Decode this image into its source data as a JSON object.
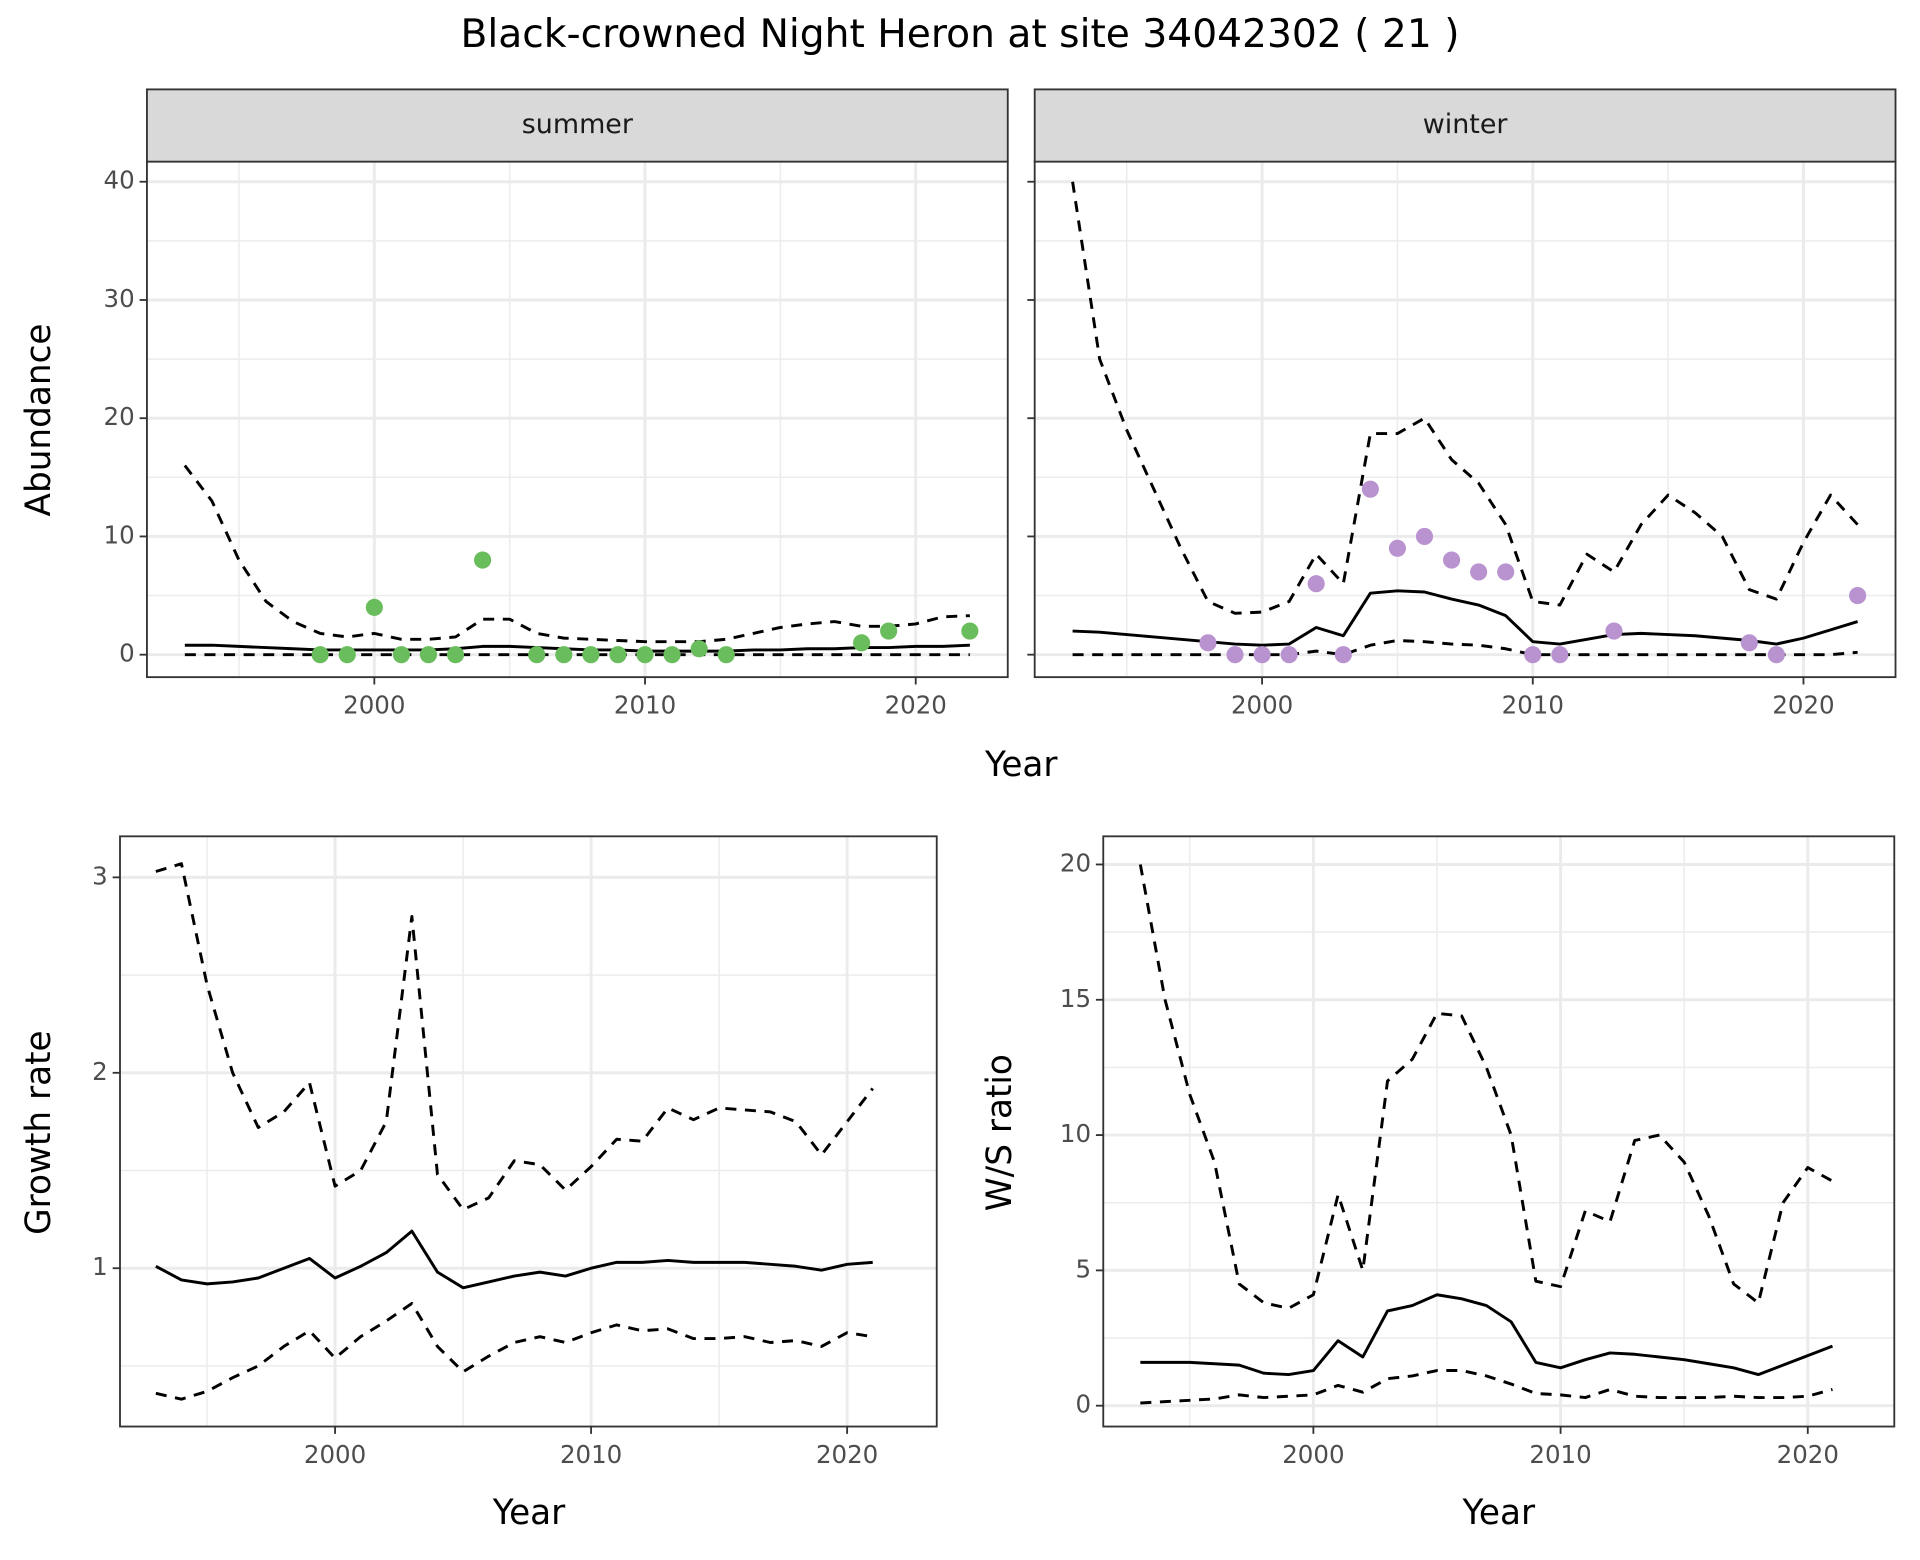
{
  "title": "Black-crowned Night Heron at site 34042302 ( 21 )",
  "chart_data": [
    {
      "type": "line",
      "strip": "summer",
      "xlabel": "Year",
      "ylabel": "Abundance",
      "xlim": [
        1991.6,
        2023.4
      ],
      "xticks": [
        2000,
        2010,
        2020
      ],
      "minor_xticks": [
        1995,
        2005,
        2015
      ],
      "ylim": [
        -1.9,
        41.7
      ],
      "yticks": [
        0,
        10,
        20,
        30,
        40
      ],
      "minor_yticks": [
        5,
        15,
        25,
        35
      ],
      "grid": true,
      "x": [
        1993,
        1994,
        1995,
        1996,
        1997,
        1998,
        1999,
        2000,
        2001,
        2002,
        2003,
        2004,
        2005,
        2006,
        2007,
        2008,
        2009,
        2010,
        2011,
        2012,
        2013,
        2014,
        2015,
        2016,
        2017,
        2018,
        2019,
        2020,
        2021,
        2022
      ],
      "series": [
        {
          "color": "#000000",
          "linestyle": "dashed",
          "values": [
            16,
            13,
            8,
            4.5,
            2.8,
            1.8,
            1.5,
            1.8,
            1.3,
            1.3,
            1.5,
            3,
            3,
            1.8,
            1.4,
            1.3,
            1.2,
            1.1,
            1.1,
            1.1,
            1.3,
            1.8,
            2.3,
            2.6,
            2.8,
            2.4,
            2.4,
            2.6,
            3.2,
            3.3
          ]
        },
        {
          "color": "#000000",
          "linestyle": "solid",
          "values": [
            0.8,
            0.8,
            0.7,
            0.6,
            0.5,
            0.4,
            0.4,
            0.4,
            0.4,
            0.4,
            0.5,
            0.7,
            0.7,
            0.6,
            0.5,
            0.4,
            0.4,
            0.3,
            0.3,
            0.3,
            0.3,
            0.4,
            0.4,
            0.5,
            0.5,
            0.6,
            0.6,
            0.7,
            0.7,
            0.8
          ]
        },
        {
          "color": "#000000",
          "linestyle": "dashed",
          "values": [
            0,
            0,
            0,
            0,
            0,
            0,
            0,
            0,
            0,
            0,
            0,
            0,
            0,
            0,
            0,
            0,
            0,
            0,
            0,
            0,
            0,
            0,
            0,
            0,
            0,
            0,
            0,
            0,
            0,
            0
          ]
        }
      ],
      "points": {
        "color": "#6abd5c",
        "x": [
          1998,
          1999,
          2000,
          2001,
          2002,
          2003,
          2004,
          2006,
          2007,
          2008,
          2009,
          2010,
          2011,
          2012,
          2013,
          2018,
          2019,
          2022
        ],
        "y": [
          0,
          0,
          4,
          0,
          0,
          0,
          8,
          0,
          0,
          0,
          0,
          0,
          0,
          0.5,
          0,
          1,
          2,
          2
        ]
      }
    },
    {
      "type": "line",
      "strip": "winter",
      "xlim": [
        1991.6,
        2023.4
      ],
      "xticks": [
        2000,
        2010,
        2020
      ],
      "minor_xticks": [
        1995,
        2005,
        2015
      ],
      "ylim": [
        -1.9,
        41.7
      ],
      "yticks": [
        0,
        10,
        20,
        30,
        40
      ],
      "minor_yticks": [
        5,
        15,
        25,
        35
      ],
      "grid": true,
      "ytick_labels": false,
      "x": [
        1993,
        1994,
        1995,
        1996,
        1997,
        1998,
        1999,
        2000,
        2001,
        2002,
        2003,
        2004,
        2005,
        2006,
        2007,
        2008,
        2009,
        2010,
        2011,
        2012,
        2013,
        2014,
        2015,
        2016,
        2017,
        2018,
        2019,
        2020,
        2021,
        2022
      ],
      "series": [
        {
          "color": "#000000",
          "linestyle": "dashed",
          "values": [
            40,
            25,
            19,
            14,
            9,
            4.5,
            3.5,
            3.6,
            4.5,
            8.5,
            6,
            18.7,
            18.7,
            20,
            16.5,
            14.5,
            11,
            4.5,
            4.2,
            8.5,
            7,
            11,
            13.5,
            12,
            10,
            5.5,
            4.7,
            9.5,
            13.5,
            11
          ]
        },
        {
          "color": "#000000",
          "linestyle": "solid",
          "values": [
            2,
            1.9,
            1.7,
            1.5,
            1.3,
            1.1,
            0.9,
            0.8,
            0.9,
            2.3,
            1.6,
            5.2,
            5.4,
            5.3,
            4.7,
            4.2,
            3.3,
            1.1,
            0.9,
            1.3,
            1.7,
            1.8,
            1.7,
            1.6,
            1.4,
            1.2,
            0.9,
            1.4,
            2.1,
            2.8
          ]
        },
        {
          "color": "#000000",
          "linestyle": "dashed",
          "values": [
            0,
            0,
            0,
            0,
            0,
            0,
            0,
            0,
            0,
            0.3,
            0,
            0.8,
            1.2,
            1.1,
            0.9,
            0.8,
            0.5,
            0,
            0,
            0,
            0,
            0,
            0,
            0,
            0,
            0,
            0,
            0,
            0,
            0.2
          ]
        }
      ],
      "points": {
        "color": "#b993d0",
        "x": [
          1998,
          1999,
          2000,
          2001,
          2002,
          2003,
          2004,
          2005,
          2006,
          2007,
          2008,
          2009,
          2010,
          2011,
          2013,
          2018,
          2019,
          2022
        ],
        "y": [
          1,
          0,
          0,
          0,
          6,
          0,
          14,
          9,
          10,
          8,
          7,
          7,
          0,
          0,
          2,
          1,
          0,
          5
        ]
      }
    },
    {
      "type": "line",
      "xlabel": "Year",
      "ylabel": "Growth rate",
      "xlim": [
        1991.6,
        2023.5
      ],
      "xticks": [
        2000,
        2010,
        2020
      ],
      "minor_xticks": [
        1995,
        2005,
        2015
      ],
      "ylim": [
        0.19,
        3.21
      ],
      "yticks": [
        1,
        2,
        3
      ],
      "minor_yticks": [
        0.5,
        1.5,
        2.5
      ],
      "grid": true,
      "x": [
        1993,
        1994,
        1995,
        1996,
        1997,
        1998,
        1999,
        2000,
        2001,
        2002,
        2003,
        2004,
        2005,
        2006,
        2007,
        2008,
        2009,
        2010,
        2011,
        2012,
        2013,
        2014,
        2015,
        2016,
        2017,
        2018,
        2019,
        2020,
        2021
      ],
      "series": [
        {
          "color": "#000000",
          "linestyle": "dashed",
          "values": [
            3.03,
            3.07,
            2.45,
            2.0,
            1.72,
            1.8,
            1.95,
            1.42,
            1.5,
            1.75,
            2.8,
            1.48,
            1.3,
            1.36,
            1.55,
            1.53,
            1.4,
            1.52,
            1.66,
            1.65,
            1.82,
            1.76,
            1.82,
            1.81,
            1.8,
            1.75,
            1.58,
            1.75,
            1.92
          ]
        },
        {
          "color": "#000000",
          "linestyle": "solid",
          "values": [
            1.01,
            0.94,
            0.92,
            0.93,
            0.95,
            1.0,
            1.05,
            0.95,
            1.01,
            1.08,
            1.19,
            0.98,
            0.9,
            0.93,
            0.96,
            0.98,
            0.96,
            1.0,
            1.03,
            1.03,
            1.04,
            1.03,
            1.03,
            1.03,
            1.02,
            1.01,
            0.99,
            1.02,
            1.03
          ]
        },
        {
          "color": "#000000",
          "linestyle": "dashed",
          "values": [
            0.36,
            0.33,
            0.37,
            0.44,
            0.5,
            0.6,
            0.68,
            0.54,
            0.65,
            0.73,
            0.82,
            0.6,
            0.47,
            0.55,
            0.62,
            0.65,
            0.62,
            0.67,
            0.71,
            0.68,
            0.69,
            0.64,
            0.64,
            0.65,
            0.62,
            0.63,
            0.6,
            0.67,
            0.65
          ]
        }
      ]
    },
    {
      "type": "line",
      "xlabel": "Year",
      "ylabel": "W/S ratio",
      "xlim": [
        1991.5,
        2023.5
      ],
      "xticks": [
        2000,
        2010,
        2020
      ],
      "minor_xticks": [
        1995,
        2005,
        2015
      ],
      "ylim": [
        -0.77,
        21.04
      ],
      "yticks": [
        0,
        5,
        10,
        15,
        20
      ],
      "minor_yticks": [
        2.5,
        7.5,
        12.5,
        17.5
      ],
      "grid": true,
      "x": [
        1993,
        1994,
        1995,
        1996,
        1997,
        1998,
        1999,
        2000,
        2001,
        2002,
        2003,
        2004,
        2005,
        2006,
        2007,
        2008,
        2009,
        2010,
        2011,
        2012,
        2013,
        2014,
        2015,
        2016,
        2017,
        2018,
        2019,
        2020,
        2021
      ],
      "series": [
        {
          "color": "#000000",
          "linestyle": "dashed",
          "values": [
            20,
            15,
            11.5,
            9,
            4.5,
            3.8,
            3.6,
            4.1,
            7.8,
            5,
            12,
            12.8,
            14.5,
            14.4,
            12.5,
            10,
            4.6,
            4.4,
            7.2,
            6.8,
            9.8,
            10,
            9,
            7,
            4.5,
            3.8,
            7.5,
            8.8,
            8.3
          ]
        },
        {
          "color": "#000000",
          "linestyle": "solid",
          "values": [
            1.6,
            1.6,
            1.6,
            1.55,
            1.5,
            1.2,
            1.15,
            1.3,
            2.4,
            1.8,
            3.5,
            3.7,
            4.1,
            3.95,
            3.7,
            3.1,
            1.6,
            1.4,
            1.7,
            1.95,
            1.9,
            1.8,
            1.7,
            1.55,
            1.4,
            1.15,
            1.5,
            1.85,
            2.2
          ]
        },
        {
          "color": "#000000",
          "linestyle": "dashed",
          "values": [
            0.1,
            0.15,
            0.2,
            0.25,
            0.4,
            0.3,
            0.35,
            0.4,
            0.75,
            0.5,
            1.0,
            1.1,
            1.3,
            1.3,
            1.1,
            0.8,
            0.45,
            0.4,
            0.3,
            0.6,
            0.35,
            0.3,
            0.3,
            0.3,
            0.35,
            0.3,
            0.3,
            0.35,
            0.6
          ]
        }
      ]
    }
  ]
}
